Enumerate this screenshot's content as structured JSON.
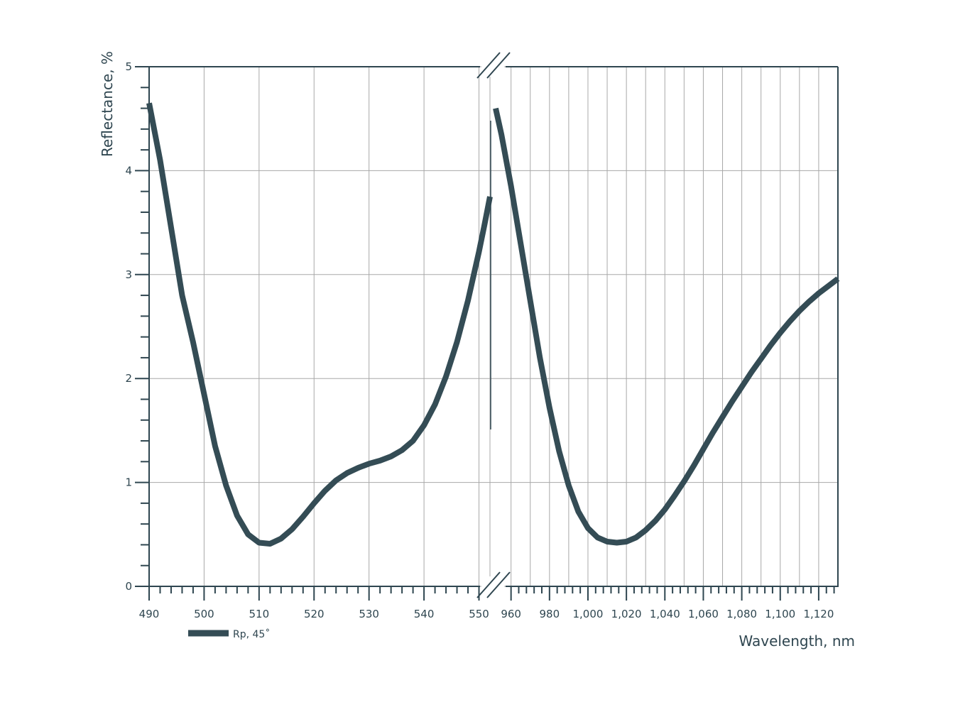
{
  "chart_data": {
    "type": "line",
    "title": "",
    "xlabel": "Wavelength, nm",
    "ylabel": "Reflectance, %",
    "ylim": [
      0,
      5
    ],
    "yticks": [
      "0",
      "1",
      "2",
      "3",
      "4",
      "5"
    ],
    "grid": true,
    "legend_placement": "bottom-left",
    "color": "#344c55",
    "x_axis_break": true,
    "x_segments": [
      {
        "xlim": [
          490,
          552
        ],
        "tick_values": [
          490,
          500,
          510,
          520,
          530,
          540,
          550
        ],
        "tick_labels": [
          "490",
          "500",
          "510",
          "520",
          "530",
          "540",
          "550"
        ]
      },
      {
        "xlim": [
          952,
          1130
        ],
        "tick_values": [
          960,
          980,
          1000,
          1020,
          1040,
          1060,
          1080,
          1100,
          1120
        ],
        "tick_labels": [
          "960",
          "980",
          "1,000",
          "1,020",
          "1,040",
          "1,060",
          "1,080",
          "1,100",
          "1,120"
        ]
      }
    ],
    "series": [
      {
        "name": "Rp, 45˚",
        "segments": [
          {
            "x": [
              490,
              492,
              494,
              496,
              498,
              500,
              502,
              504,
              506,
              508,
              510,
              512,
              514,
              516,
              518,
              520,
              522,
              524,
              526,
              528,
              530,
              532,
              534,
              536,
              538,
              540,
              542,
              544,
              546,
              548,
              550,
              551,
              552
            ],
            "y": [
              4.65,
              4.1,
              3.45,
              2.8,
              2.35,
              1.85,
              1.35,
              0.97,
              0.68,
              0.5,
              0.42,
              0.41,
              0.46,
              0.55,
              0.67,
              0.8,
              0.92,
              1.02,
              1.09,
              1.14,
              1.18,
              1.21,
              1.25,
              1.31,
              1.4,
              1.55,
              1.75,
              2.02,
              2.35,
              2.75,
              3.22,
              3.48,
              3.75
            ]
          },
          {
            "x": [
              952,
              955,
              960,
              965,
              970,
              975,
              980,
              985,
              990,
              995,
              1000,
              1005,
              1010,
              1015,
              1020,
              1025,
              1030,
              1035,
              1040,
              1045,
              1050,
              1055,
              1060,
              1065,
              1070,
              1075,
              1080,
              1085,
              1090,
              1095,
              1100,
              1105,
              1110,
              1115,
              1120,
              1125,
              1130
            ],
            "y": [
              4.6,
              4.35,
              3.85,
              3.3,
              2.75,
              2.2,
              1.72,
              1.3,
              0.97,
              0.72,
              0.56,
              0.47,
              0.43,
              0.42,
              0.43,
              0.47,
              0.54,
              0.63,
              0.74,
              0.87,
              1.01,
              1.16,
              1.32,
              1.48,
              1.63,
              1.78,
              1.92,
              2.06,
              2.19,
              2.32,
              2.44,
              2.55,
              2.65,
              2.74,
              2.82,
              2.89,
              2.96
            ]
          }
        ]
      }
    ]
  }
}
